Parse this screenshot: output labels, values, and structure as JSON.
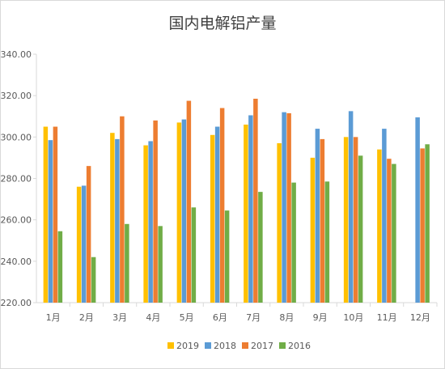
{
  "chart_data": {
    "type": "bar",
    "title": "国内电解铝产量",
    "categories": [
      "1月",
      "2月",
      "3月",
      "4月",
      "5月",
      "6月",
      "7月",
      "8月",
      "9月",
      "10月",
      "11月",
      "12月"
    ],
    "series": [
      {
        "name": "2019",
        "color": "#FFC000",
        "values": [
          305,
          276,
          302,
          296,
          307,
          301,
          306,
          297,
          290,
          300,
          294,
          null
        ]
      },
      {
        "name": "2018",
        "color": "#5B9BD5",
        "values": [
          298.5,
          276.5,
          299,
          298,
          308.5,
          305,
          310.5,
          312,
          304,
          312.5,
          304,
          309.5
        ]
      },
      {
        "name": "2017",
        "color": "#ED7D31",
        "values": [
          305,
          286,
          310,
          308,
          317.5,
          314,
          318.5,
          311.5,
          299,
          300,
          289.5,
          294.5
        ]
      },
      {
        "name": "2016",
        "color": "#70AD47",
        "values": [
          254.5,
          242,
          258,
          257,
          266,
          264.5,
          273.5,
          278,
          278.5,
          291,
          287,
          296.5
        ]
      }
    ],
    "yticks": [
      "220.00",
      "240.00",
      "260.00",
      "280.00",
      "300.00",
      "320.00",
      "340.00"
    ],
    "ylim": [
      220,
      340
    ],
    "grid": false,
    "legend_position": "bottom"
  }
}
